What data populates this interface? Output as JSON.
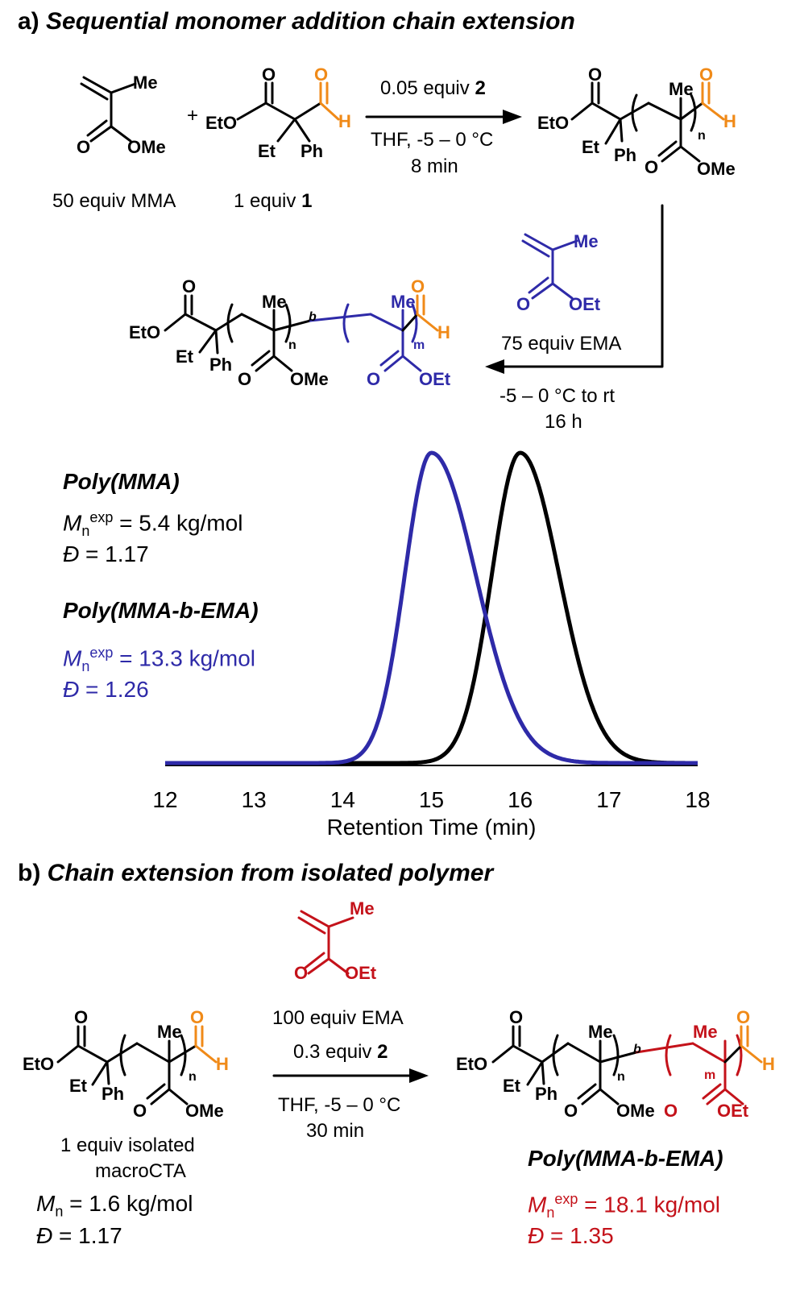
{
  "colors": {
    "black": "#000000",
    "orange": "#f08a18",
    "blue": "#2e2aa8",
    "red": "#c4121a"
  },
  "section_a": {
    "label": "a)",
    "title": "Sequential monomer addition chain extension",
    "mma_amount": "50 equiv MMA",
    "cta_amount": "1 equiv",
    "cta_number": "1",
    "step1_cond1": "0.05 equiv",
    "step1_cat": "2",
    "step1_cond2": "THF, -5 – 0 °C",
    "step1_cond3": "8 min",
    "step2_cond1": "75 equiv EMA",
    "step2_cond2": "-5 – 0 °C to rt",
    "step2_cond3": "16 h",
    "poly1_name": "Poly(MMA)",
    "poly1_mn": "= 5.4 kg/mol",
    "poly1_d": "= 1.17",
    "poly2_name": "Poly(MMA-b-EMA)",
    "poly2_mn": "= 13.3 kg/mol",
    "poly2_d": "= 1.26"
  },
  "labels": {
    "Me": "Me",
    "OMe": "OMe",
    "OEt": "OEt",
    "EtO": "EtO",
    "O": "O",
    "H": "H",
    "Et": "Et",
    "Ph": "Ph",
    "n": "n",
    "m": "m",
    "b": "b",
    "plus": "+",
    "M": "M",
    "n_sub": "n",
    "exp": "exp",
    "D": "Đ"
  },
  "chart_data": {
    "type": "line",
    "xlabel": "Retention Time (min)",
    "ylabel": "",
    "xlim": [
      12,
      18
    ],
    "ticks": [
      "12",
      "13",
      "14",
      "15",
      "16",
      "17",
      "18"
    ],
    "series": [
      {
        "name": "Poly(MMA)",
        "color": "#000000",
        "peak": 16.0,
        "sigma_left": 0.32,
        "sigma_right": 0.44
      },
      {
        "name": "Poly(MMA-b-EMA)",
        "color": "#2e2aa8",
        "peak": 15.0,
        "sigma_left": 0.3,
        "sigma_right": 0.5
      }
    ]
  },
  "section_b": {
    "label": "b)",
    "title": "Chain extension from isolated polymer",
    "cond1": "100 equiv EMA",
    "cond2": "0.3 equiv",
    "cat": "2",
    "cond3": "THF, -5 – 0 °C",
    "cond4": "30 min",
    "macro_line1": "1 equiv isolated",
    "macro_line2": "macroCTA",
    "macro_mn": "= 1.6 kg/mol",
    "macro_d": "= 1.17",
    "product_name": "Poly(MMA-b-EMA)",
    "product_mn": "= 18.1 kg/mol",
    "product_d": "= 1.35"
  }
}
